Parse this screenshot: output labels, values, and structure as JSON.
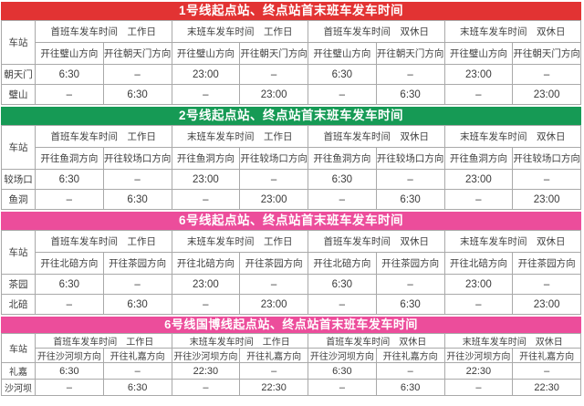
{
  "tables": [
    {
      "line": "line-1",
      "title": "1号线起点站、终点站首末班车发车时间",
      "theme_color": "#e23333",
      "title_text_color": "#ffffff",
      "station_header": "车站",
      "group_headers": [
        "首班车发车时间　工作日",
        "末班车发车时间　工作日",
        "首班车发车时间　双休日",
        "末班车发车时间　双休日"
      ],
      "direction_headers": [
        "开往璧山方向",
        "开往朝天门方向",
        "开往璧山方向",
        "开往朝天门方向",
        "开往璧山方向",
        "开往朝天门方向",
        "开往璧山方向",
        "开往朝天门方向"
      ],
      "rows": [
        {
          "station": "朝天门",
          "times": [
            "6:30",
            "–",
            "23:00",
            "–",
            "6:30",
            "–",
            "23:00",
            "–"
          ]
        },
        {
          "station": "璧山",
          "times": [
            "–",
            "6:30",
            "–",
            "23:00",
            "–",
            "6:30",
            "–",
            "23:00"
          ]
        }
      ]
    },
    {
      "line": "line-2",
      "title": "2号线起点站、终点站首末班车发车时间",
      "theme_color": "#169a55",
      "title_text_color": "#ffffff",
      "station_header": "车站",
      "group_headers": [
        "首班车发车时间　工作日",
        "末班车发车时间　工作日",
        "首班车发车时间　双休日",
        "末班车发车时间　双休日"
      ],
      "direction_headers": [
        "开往鱼洞方向",
        "开往较场口方向",
        "开往鱼洞方向",
        "开往较场口方向",
        "开往鱼洞方向",
        "开往较场口方向",
        "开往鱼洞方向",
        "开往较场口方向"
      ],
      "rows": [
        {
          "station": "较场口",
          "times": [
            "6:30",
            "–",
            "23:00",
            "–",
            "6:30",
            "–",
            "23:00",
            "–"
          ]
        },
        {
          "station": "鱼洞",
          "times": [
            "–",
            "6:30",
            "–",
            "23:00",
            "–",
            "6:30",
            "–",
            "23:00"
          ]
        }
      ]
    },
    {
      "line": "line-6",
      "title": "6号线起点站、终点站首末班车发车时间",
      "theme_color": "#ec4d9b",
      "title_text_color": "#ffffff",
      "station_header": "车站",
      "group_headers": [
        "首班车发车时间　工作日",
        "末班车发车时间　工作日",
        "首班车发车时间　双休日",
        "末班车发车时间　双休日"
      ],
      "direction_headers": [
        "开往北碚方向",
        "开往茶园方向",
        "开往北碚方向",
        "开往茶园方向",
        "开往北碚方向",
        "开往茶园方向",
        "开往北碚方向",
        "开往茶园方向"
      ],
      "rows": [
        {
          "station": "茶园",
          "times": [
            "6:30",
            "–",
            "23:00",
            "–",
            "6:30",
            "–",
            "23:00",
            "–"
          ]
        },
        {
          "station": "北碚",
          "times": [
            "–",
            "6:30",
            "–",
            "23:00",
            "–",
            "6:30",
            "–",
            "23:00"
          ]
        }
      ]
    },
    {
      "line": "line-6-guobo",
      "title": "6号线国博线起点站、终点站首末班车发车时间",
      "theme_color": "#ec4d9b",
      "title_text_color": "#ffffff",
      "station_header": "车站",
      "group_headers": [
        "首班车发车时间　工作日",
        "末班车发车时间　工作日",
        "首班车发车时间　双休日",
        "末班车发车时间　双休日"
      ],
      "direction_headers": [
        "开往沙河坝方向",
        "开往礼嘉方向",
        "开往沙河坝方向",
        "开往礼嘉方向",
        "开往沙河坝方向",
        "开往礼嘉方向",
        "开往沙河坝方向",
        "开往礼嘉方向"
      ],
      "rows": [
        {
          "station": "礼嘉",
          "times": [
            "6:30",
            "–",
            "22:30",
            "–",
            "6:30",
            "–",
            "22:30",
            "–"
          ]
        },
        {
          "station": "沙河坝",
          "times": [
            "–",
            "6:30",
            "–",
            "22:30",
            "–",
            "6:30",
            "–",
            "22:30"
          ]
        }
      ]
    }
  ]
}
